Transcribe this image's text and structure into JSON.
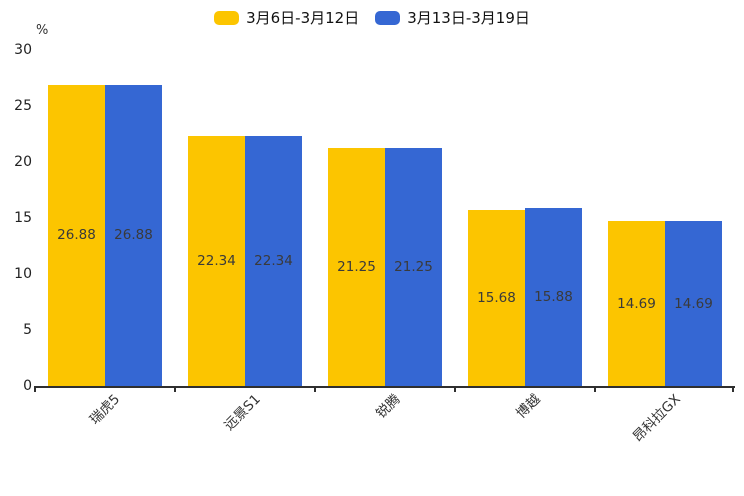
{
  "chart_data": {
    "type": "bar",
    "title": "",
    "unit_label": "%",
    "categories": [
      "瑞虎5",
      "远景S1",
      "锐腾",
      "博越",
      "昂科拉GX"
    ],
    "series": [
      {
        "name": "3月6日-3月12日",
        "color": "#FCC500",
        "values": [
          26.88,
          22.34,
          21.25,
          15.68,
          14.69
        ]
      },
      {
        "name": "3月13日-3月19日",
        "color": "#3567D3",
        "values": [
          26.88,
          22.34,
          21.25,
          15.88,
          14.69
        ]
      }
    ],
    "ylim": [
      0,
      30
    ],
    "yticks": [
      0,
      5,
      10,
      15,
      20,
      25,
      30
    ],
    "grid": false,
    "legend_position": "top-center",
    "value_labels": "inside-center",
    "value_label_color": "#3a3a3a",
    "axis_color": "#2f2f2f",
    "background_color": "#ffffff"
  }
}
